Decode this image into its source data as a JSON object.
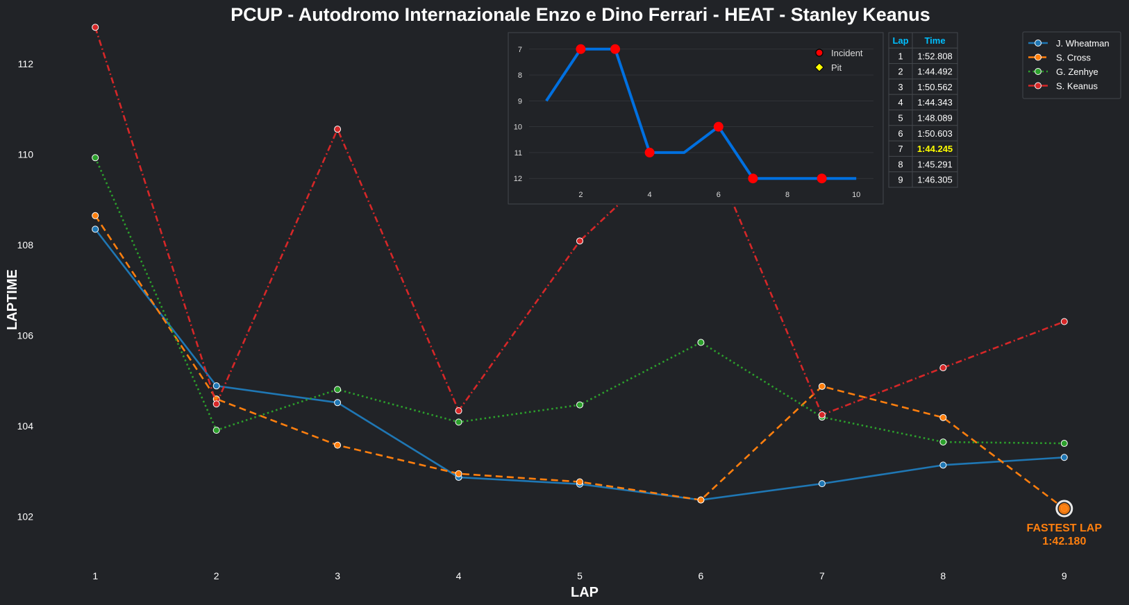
{
  "chart_data": {
    "type": "line",
    "title": "PCUP - Autodromo Internazionale Enzo e Dino Ferrari - HEAT - Stanley Keanus",
    "xlabel": "LAP",
    "ylabel": "LAPTIME",
    "x": [
      1,
      2,
      3,
      4,
      5,
      6,
      7,
      8,
      9
    ],
    "xlim": [
      0.5,
      9.5
    ],
    "ylim": [
      101,
      112.8
    ],
    "yticks": [
      102,
      104,
      106,
      108,
      110,
      112
    ],
    "grid": false,
    "legend_position": "top-right",
    "series": [
      {
        "name": "J. Wheatman",
        "color": "#1f77b4",
        "dash": "solid",
        "values": [
          108.35,
          104.89,
          104.52,
          102.87,
          102.72,
          102.37,
          102.73,
          103.14,
          103.31
        ]
      },
      {
        "name": "S. Cross",
        "color": "#ff7f0e",
        "dash": "dashed",
        "values": [
          108.65,
          104.6,
          103.58,
          102.95,
          102.77,
          102.37,
          104.88,
          104.19,
          102.18
        ]
      },
      {
        "name": "G. Zenhye",
        "color": "#2ca02c",
        "dash": "dotted",
        "values": [
          109.93,
          103.91,
          104.81,
          104.09,
          104.47,
          105.85,
          104.2,
          103.65,
          103.62
        ]
      },
      {
        "name": "S. Keanus",
        "color": "#d62728",
        "dash": "dashdot",
        "values": [
          112.81,
          104.49,
          110.56,
          104.34,
          108.09,
          110.6,
          104.25,
          105.29,
          106.31
        ]
      }
    ],
    "fastest_lap": {
      "driver": "S. Cross",
      "lap": 9,
      "value": 102.18,
      "label": "FASTEST LAP",
      "time": "1:42.180",
      "color": "#ff7f0e"
    },
    "inset": {
      "type": "line",
      "x": [
        1,
        2,
        3,
        4,
        5,
        6,
        7,
        8,
        9,
        10
      ],
      "values": [
        9,
        7,
        7,
        11,
        11,
        10,
        12,
        12,
        12,
        12
      ],
      "ylim": [
        12.45,
        6.55
      ],
      "xlim": [
        0.5,
        10.5
      ],
      "yticks": [
        7,
        8,
        9,
        10,
        11,
        12
      ],
      "xticks": [
        2,
        4,
        6,
        8,
        10
      ],
      "y_inverted": true,
      "line_color": "#0070e0",
      "incident_laps": [
        2,
        3,
        4,
        6,
        7,
        9
      ],
      "pit_laps": [],
      "legend": [
        {
          "label": "Incident",
          "marker": "circle",
          "color": "#ff0000"
        },
        {
          "label": "Pit",
          "marker": "diamond",
          "color": "#ffff00"
        }
      ]
    },
    "lap_table": {
      "headers": [
        "Lap",
        "Time"
      ],
      "rows": [
        [
          "1",
          "1:52.808"
        ],
        [
          "2",
          "1:44.492"
        ],
        [
          "3",
          "1:50.562"
        ],
        [
          "4",
          "1:44.343"
        ],
        [
          "5",
          "1:48.089"
        ],
        [
          "6",
          "1:50.603"
        ],
        [
          "7",
          "1:44.245"
        ],
        [
          "8",
          "1:45.291"
        ],
        [
          "9",
          "1:46.305"
        ]
      ],
      "best_row": 6
    }
  }
}
